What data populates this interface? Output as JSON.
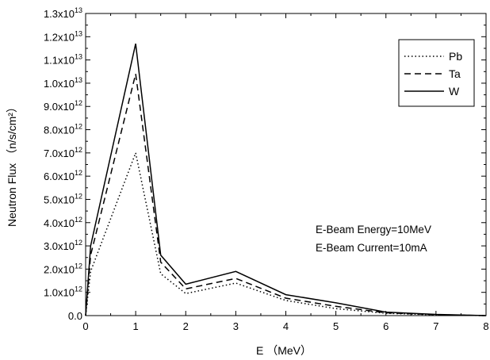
{
  "chart_data": {
    "type": "line",
    "xlabel": "E （MeV）",
    "ylabel": "Neutron Flux （n/s/cm²）",
    "xlim": [
      0,
      8
    ],
    "ylim": [
      0,
      13000000000000.0
    ],
    "grid": false,
    "legend_position": "top-right",
    "x_ticks": [
      0,
      1,
      2,
      3,
      4,
      5,
      6,
      7,
      8
    ],
    "x_tick_labels": [
      "0",
      "1",
      "2",
      "3",
      "4",
      "5",
      "6",
      "7",
      "8"
    ],
    "y_ticks": [
      0,
      1000000000000.0,
      2000000000000.0,
      3000000000000.0,
      4000000000000.0,
      5000000000000.0,
      6000000000000.0,
      7000000000000.0,
      8000000000000.0,
      9000000000000.0,
      10000000000000.0,
      11000000000000.0,
      12000000000000.0,
      13000000000000.0
    ],
    "y_tick_labels": [
      {
        "mant": "0.0",
        "exp": ""
      },
      {
        "mant": "1.0x10",
        "exp": "12"
      },
      {
        "mant": "2.0x10",
        "exp": "12"
      },
      {
        "mant": "3.0x10",
        "exp": "12"
      },
      {
        "mant": "4.0x10",
        "exp": "12"
      },
      {
        "mant": "5.0x10",
        "exp": "12"
      },
      {
        "mant": "6.0x10",
        "exp": "12"
      },
      {
        "mant": "7.0x10",
        "exp": "12"
      },
      {
        "mant": "8.0x10",
        "exp": "12"
      },
      {
        "mant": "9.0x10",
        "exp": "12"
      },
      {
        "mant": "1.0x10",
        "exp": "13"
      },
      {
        "mant": "1.1x10",
        "exp": "13"
      },
      {
        "mant": "1.2x10",
        "exp": "13"
      },
      {
        "mant": "1.3x10",
        "exp": "13"
      }
    ],
    "x": [
      0,
      0.1,
      1,
      1.5,
      2,
      3,
      4,
      5,
      6,
      7,
      8
    ],
    "series": [
      {
        "name": "Pb",
        "style": "dotted",
        "color": "#000000",
        "values": [
          0,
          1900000000000.0,
          7000000000000.0,
          1800000000000.0,
          950000000000.0,
          1400000000000.0,
          650000000000.0,
          300000000000.0,
          100000000000.0,
          30000000000.0,
          0
        ]
      },
      {
        "name": "Ta",
        "style": "dashed",
        "color": "#000000",
        "values": [
          0,
          2600000000000.0,
          10400000000000.0,
          2300000000000.0,
          1150000000000.0,
          1600000000000.0,
          750000000000.0,
          400000000000.0,
          120000000000.0,
          40000000000.0,
          0
        ]
      },
      {
        "name": "W",
        "style": "solid",
        "color": "#000000",
        "values": [
          0,
          3000000000000.0,
          11700000000000.0,
          2600000000000.0,
          1350000000000.0,
          1900000000000.0,
          900000000000.0,
          550000000000.0,
          150000000000.0,
          50000000000.0,
          0
        ]
      }
    ],
    "annotations": [
      "E-Beam Energy=10MeV",
      "E-Beam Current=10mA"
    ]
  }
}
